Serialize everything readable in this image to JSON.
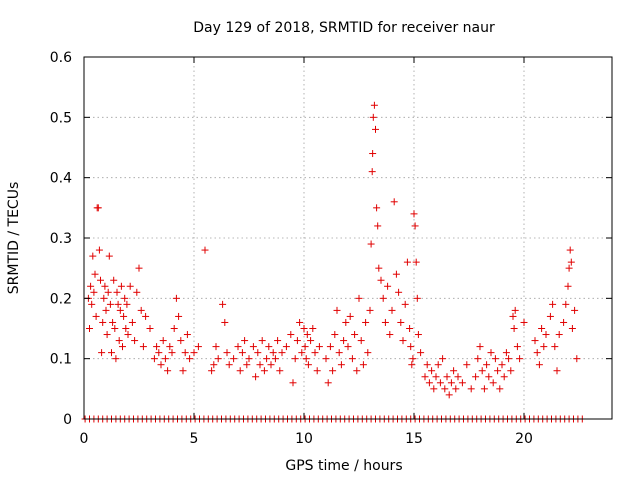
{
  "chart_data": {
    "type": "scatter",
    "title": "Day 129 of 2018, SRMTID for receiver naur",
    "xlabel": "GPS time / hours",
    "ylabel": "SRMTID / TECUs",
    "xlim": [
      0,
      24
    ],
    "ylim": [
      0,
      0.6
    ],
    "xticks": [
      "0",
      "5",
      "10",
      "15",
      "20"
    ],
    "yticks": [
      "0",
      "0.1",
      "0.2",
      "0.3",
      "0.4",
      "0.5",
      "0.6"
    ],
    "grid": true,
    "marker": "plus",
    "color": "#e00000",
    "baseline": {
      "y": 0,
      "x_start": 0.05,
      "x_end": 22.65,
      "step": 0.2
    },
    "series": [
      {
        "name": "SRMTID",
        "points": [
          [
            0.2,
            0.2
          ],
          [
            0.25,
            0.15
          ],
          [
            0.3,
            0.22
          ],
          [
            0.35,
            0.19
          ],
          [
            0.4,
            0.27
          ],
          [
            0.45,
            0.21
          ],
          [
            0.5,
            0.24
          ],
          [
            0.55,
            0.17
          ],
          [
            0.6,
            0.35
          ],
          [
            0.65,
            0.35
          ],
          [
            0.7,
            0.28
          ],
          [
            0.75,
            0.23
          ],
          [
            0.8,
            0.11
          ],
          [
            0.85,
            0.16
          ],
          [
            0.9,
            0.2
          ],
          [
            0.95,
            0.22
          ],
          [
            1.0,
            0.18
          ],
          [
            1.05,
            0.14
          ],
          [
            1.1,
            0.21
          ],
          [
            1.15,
            0.27
          ],
          [
            1.2,
            0.19
          ],
          [
            1.25,
            0.11
          ],
          [
            1.3,
            0.16
          ],
          [
            1.35,
            0.23
          ],
          [
            1.4,
            0.15
          ],
          [
            1.45,
            0.1
          ],
          [
            1.5,
            0.21
          ],
          [
            1.55,
            0.19
          ],
          [
            1.6,
            0.13
          ],
          [
            1.65,
            0.18
          ],
          [
            1.7,
            0.22
          ],
          [
            1.75,
            0.12
          ],
          [
            1.8,
            0.17
          ],
          [
            1.85,
            0.2
          ],
          [
            1.9,
            0.15
          ],
          [
            1.95,
            0.19
          ],
          [
            2.0,
            0.14
          ],
          [
            2.1,
            0.22
          ],
          [
            2.2,
            0.16
          ],
          [
            2.3,
            0.13
          ],
          [
            2.4,
            0.21
          ],
          [
            2.5,
            0.25
          ],
          [
            2.6,
            0.18
          ],
          [
            2.7,
            0.12
          ],
          [
            2.8,
            0.17
          ],
          [
            3.0,
            0.15
          ],
          [
            3.2,
            0.1
          ],
          [
            3.3,
            0.12
          ],
          [
            3.4,
            0.11
          ],
          [
            3.5,
            0.09
          ],
          [
            3.6,
            0.13
          ],
          [
            3.7,
            0.1
          ],
          [
            3.8,
            0.08
          ],
          [
            3.9,
            0.12
          ],
          [
            4.0,
            0.11
          ],
          [
            4.1,
            0.15
          ],
          [
            4.2,
            0.2
          ],
          [
            4.3,
            0.17
          ],
          [
            4.4,
            0.13
          ],
          [
            4.5,
            0.08
          ],
          [
            4.6,
            0.11
          ],
          [
            4.7,
            0.14
          ],
          [
            4.8,
            0.1
          ],
          [
            5.0,
            0.11
          ],
          [
            5.2,
            0.12
          ],
          [
            5.5,
            0.28
          ],
          [
            5.8,
            0.08
          ],
          [
            5.9,
            0.09
          ],
          [
            6.0,
            0.12
          ],
          [
            6.1,
            0.1
          ],
          [
            6.3,
            0.19
          ],
          [
            6.4,
            0.16
          ],
          [
            6.5,
            0.11
          ],
          [
            6.6,
            0.09
          ],
          [
            6.8,
            0.1
          ],
          [
            7.0,
            0.12
          ],
          [
            7.1,
            0.08
          ],
          [
            7.2,
            0.11
          ],
          [
            7.3,
            0.13
          ],
          [
            7.4,
            0.09
          ],
          [
            7.5,
            0.1
          ],
          [
            7.7,
            0.12
          ],
          [
            7.8,
            0.07
          ],
          [
            7.9,
            0.11
          ],
          [
            8.0,
            0.09
          ],
          [
            8.1,
            0.13
          ],
          [
            8.2,
            0.08
          ],
          [
            8.3,
            0.1
          ],
          [
            8.4,
            0.12
          ],
          [
            8.5,
            0.09
          ],
          [
            8.6,
            0.11
          ],
          [
            8.7,
            0.1
          ],
          [
            8.8,
            0.13
          ],
          [
            8.9,
            0.08
          ],
          [
            9.0,
            0.11
          ],
          [
            9.2,
            0.12
          ],
          [
            9.4,
            0.14
          ],
          [
            9.5,
            0.06
          ],
          [
            9.6,
            0.1
          ],
          [
            9.7,
            0.13
          ],
          [
            9.8,
            0.16
          ],
          [
            9.9,
            0.11
          ],
          [
            10.0,
            0.15
          ],
          [
            10.05,
            0.12
          ],
          [
            10.1,
            0.1
          ],
          [
            10.15,
            0.14
          ],
          [
            10.2,
            0.09
          ],
          [
            10.3,
            0.13
          ],
          [
            10.4,
            0.15
          ],
          [
            10.5,
            0.11
          ],
          [
            10.6,
            0.08
          ],
          [
            10.7,
            0.12
          ],
          [
            11.0,
            0.1
          ],
          [
            11.1,
            0.06
          ],
          [
            11.2,
            0.12
          ],
          [
            11.3,
            0.08
          ],
          [
            11.4,
            0.14
          ],
          [
            11.5,
            0.18
          ],
          [
            11.6,
            0.11
          ],
          [
            11.7,
            0.09
          ],
          [
            11.8,
            0.13
          ],
          [
            11.9,
            0.16
          ],
          [
            12.0,
            0.12
          ],
          [
            12.1,
            0.17
          ],
          [
            12.2,
            0.1
          ],
          [
            12.3,
            0.14
          ],
          [
            12.4,
            0.08
          ],
          [
            12.5,
            0.2
          ],
          [
            12.6,
            0.13
          ],
          [
            12.7,
            0.09
          ],
          [
            12.8,
            0.16
          ],
          [
            12.9,
            0.11
          ],
          [
            13.0,
            0.18
          ],
          [
            13.05,
            0.29
          ],
          [
            13.1,
            0.41
          ],
          [
            13.12,
            0.44
          ],
          [
            13.15,
            0.5
          ],
          [
            13.2,
            0.52
          ],
          [
            13.25,
            0.48
          ],
          [
            13.3,
            0.35
          ],
          [
            13.35,
            0.32
          ],
          [
            13.4,
            0.25
          ],
          [
            13.5,
            0.23
          ],
          [
            13.6,
            0.2
          ],
          [
            13.7,
            0.16
          ],
          [
            13.8,
            0.22
          ],
          [
            13.9,
            0.14
          ],
          [
            14.0,
            0.18
          ],
          [
            14.1,
            0.36
          ],
          [
            14.2,
            0.24
          ],
          [
            14.3,
            0.21
          ],
          [
            14.4,
            0.16
          ],
          [
            14.5,
            0.13
          ],
          [
            14.6,
            0.19
          ],
          [
            14.7,
            0.26
          ],
          [
            14.8,
            0.15
          ],
          [
            14.85,
            0.12
          ],
          [
            14.9,
            0.09
          ],
          [
            14.95,
            0.1
          ],
          [
            15.0,
            0.34
          ],
          [
            15.05,
            0.32
          ],
          [
            15.1,
            0.26
          ],
          [
            15.15,
            0.2
          ],
          [
            15.2,
            0.14
          ],
          [
            15.3,
            0.11
          ],
          [
            15.5,
            0.07
          ],
          [
            15.6,
            0.09
          ],
          [
            15.7,
            0.06
          ],
          [
            15.8,
            0.08
          ],
          [
            15.9,
            0.05
          ],
          [
            16.0,
            0.07
          ],
          [
            16.1,
            0.09
          ],
          [
            16.2,
            0.06
          ],
          [
            16.3,
            0.1
          ],
          [
            16.4,
            0.05
          ],
          [
            16.5,
            0.07
          ],
          [
            16.6,
            0.04
          ],
          [
            16.7,
            0.06
          ],
          [
            16.8,
            0.08
          ],
          [
            16.9,
            0.05
          ],
          [
            17.0,
            0.07
          ],
          [
            17.2,
            0.06
          ],
          [
            17.4,
            0.09
          ],
          [
            17.6,
            0.05
          ],
          [
            17.8,
            0.07
          ],
          [
            17.9,
            0.1
          ],
          [
            18.0,
            0.12
          ],
          [
            18.1,
            0.08
          ],
          [
            18.2,
            0.05
          ],
          [
            18.3,
            0.09
          ],
          [
            18.4,
            0.07
          ],
          [
            18.5,
            0.11
          ],
          [
            18.6,
            0.06
          ],
          [
            18.7,
            0.1
          ],
          [
            18.8,
            0.08
          ],
          [
            18.9,
            0.05
          ],
          [
            19.0,
            0.09
          ],
          [
            19.1,
            0.07
          ],
          [
            19.2,
            0.11
          ],
          [
            19.3,
            0.1
          ],
          [
            19.4,
            0.08
          ],
          [
            19.5,
            0.17
          ],
          [
            19.55,
            0.15
          ],
          [
            19.6,
            0.18
          ],
          [
            19.7,
            0.12
          ],
          [
            19.8,
            0.1
          ],
          [
            20.0,
            0.16
          ],
          [
            20.5,
            0.13
          ],
          [
            20.6,
            0.11
          ],
          [
            20.7,
            0.09
          ],
          [
            20.8,
            0.15
          ],
          [
            20.9,
            0.12
          ],
          [
            21.0,
            0.14
          ],
          [
            21.2,
            0.17
          ],
          [
            21.3,
            0.19
          ],
          [
            21.4,
            0.12
          ],
          [
            21.5,
            0.08
          ],
          [
            21.6,
            0.14
          ],
          [
            21.8,
            0.16
          ],
          [
            21.9,
            0.19
          ],
          [
            22.0,
            0.22
          ],
          [
            22.05,
            0.25
          ],
          [
            22.1,
            0.28
          ],
          [
            22.15,
            0.26
          ],
          [
            22.2,
            0.15
          ],
          [
            22.3,
            0.18
          ],
          [
            22.4,
            0.1
          ]
        ]
      }
    ]
  }
}
